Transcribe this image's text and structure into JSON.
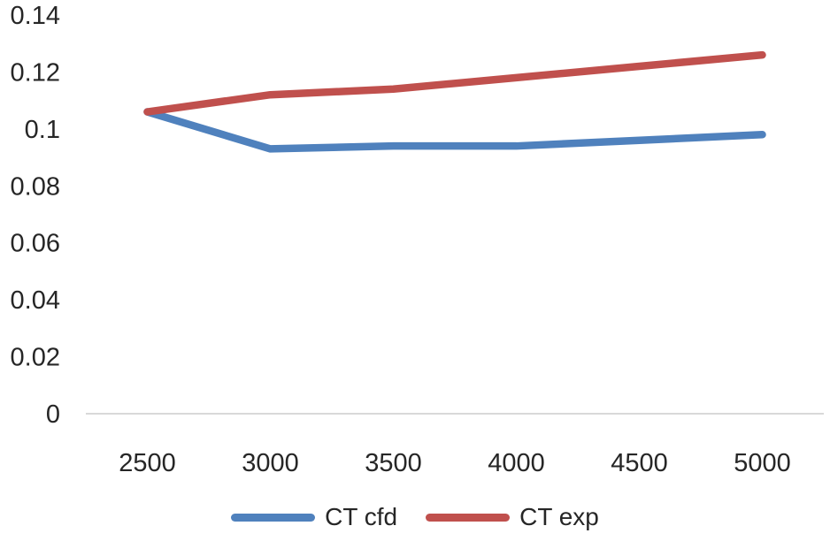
{
  "chart_data": {
    "type": "line",
    "title": "",
    "xlabel": "",
    "ylabel": "",
    "x": [
      2500,
      3000,
      3500,
      4000,
      4500,
      5000
    ],
    "xtick_labels": [
      "2500",
      "3000",
      "3500",
      "4000",
      "4500",
      "5000"
    ],
    "yticks": [
      "0",
      "0.02",
      "0.04",
      "0.06",
      "0.08",
      "0.1",
      "0.12",
      "0.14"
    ],
    "ylim": [
      0,
      0.14
    ],
    "grid": false,
    "legend_position": "bottom",
    "axis_color": "#d9d9d9",
    "text_color": "#262626",
    "background_color": "#ffffff",
    "series": [
      {
        "name": "CT cfd",
        "color": "#4F81BD",
        "values": [
          0.106,
          0.093,
          0.094,
          0.094,
          0.096,
          0.098
        ]
      },
      {
        "name": "CT exp",
        "color": "#C0504D",
        "values": [
          0.106,
          0.112,
          0.114,
          0.118,
          0.122,
          0.126
        ]
      }
    ]
  }
}
